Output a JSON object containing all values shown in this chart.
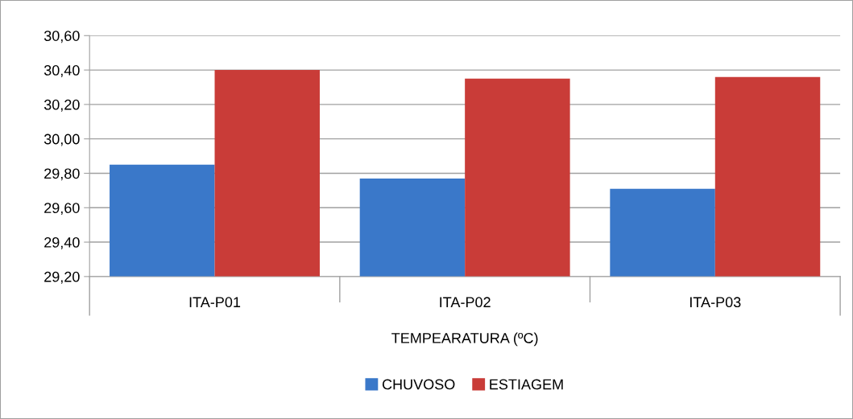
{
  "chart_data": {
    "type": "bar",
    "xlabel": "TEMPEARATURA (ºC)",
    "categories": [
      "ITA-P01",
      "ITA-P02",
      "ITA-P03"
    ],
    "series": [
      {
        "name": "CHUVOSO",
        "color": "#3a78c9",
        "values": [
          29.85,
          29.77,
          29.71
        ]
      },
      {
        "name": "ESTIAGEM",
        "color": "#c93c38",
        "values": [
          30.4,
          30.35,
          30.36
        ]
      }
    ],
    "ylim": [
      29.2,
      30.6
    ],
    "yticks": [
      {
        "value": 29.2,
        "label": "29,20"
      },
      {
        "value": 29.4,
        "label": "29,40"
      },
      {
        "value": 29.6,
        "label": "29,60"
      },
      {
        "value": 29.8,
        "label": "29,80"
      },
      {
        "value": 30.0,
        "label": "30,00"
      },
      {
        "value": 30.2,
        "label": "30,20"
      },
      {
        "value": 30.4,
        "label": "30,40"
      },
      {
        "value": 30.6,
        "label": "30,60"
      }
    ],
    "grid": "y",
    "legend": "bottom"
  }
}
